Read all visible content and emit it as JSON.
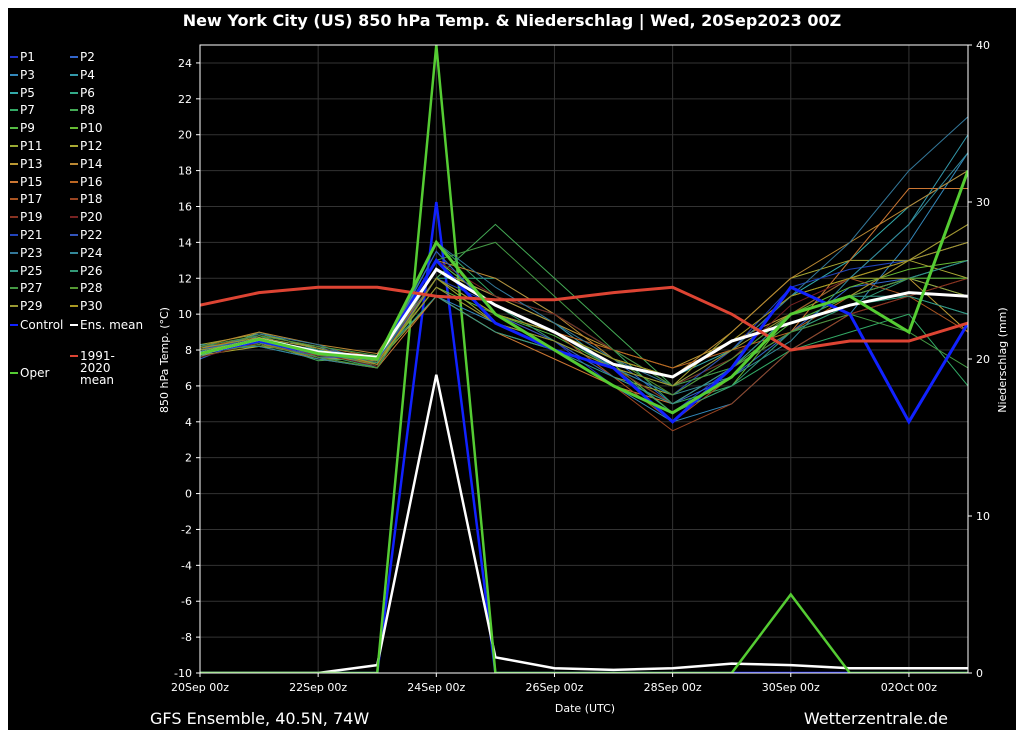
{
  "chart_data": {
    "type": "line",
    "title": "New York City  (US)  850 hPa Temp. & Niederschlag | Wed, 20Sep2023 00Z",
    "x_label": "Date (UTC)",
    "y_label": "850 hPa Temp. (°C)",
    "y2_label": "Niederschlag (mm)",
    "footer_left": "GFS Ensemble, 40.5N, 74W",
    "footer_right": "Wetterzentrale.de",
    "grid": true,
    "x": [
      0,
      1,
      2,
      3,
      4,
      5,
      6,
      7,
      8,
      9,
      10,
      11,
      12,
      13
    ],
    "xlim": [
      0,
      13
    ],
    "xticks": [
      {
        "value": 0,
        "label": "20Sep 00z"
      },
      {
        "value": 2,
        "label": "22Sep 00z"
      },
      {
        "value": 4,
        "label": "24Sep 00z"
      },
      {
        "value": 6,
        "label": "26Sep 00z"
      },
      {
        "value": 8,
        "label": "28Sep 00z"
      },
      {
        "value": 10,
        "label": "30Sep 00z"
      },
      {
        "value": 12,
        "label": "02Oct 00z"
      }
    ],
    "ylim": [
      -10,
      25
    ],
    "yticks": [
      -10,
      -8,
      -6,
      -4,
      -2,
      0,
      2,
      4,
      6,
      8,
      10,
      12,
      14,
      16,
      18,
      20,
      22,
      24
    ],
    "y2lim": [
      0,
      40
    ],
    "y2ticks": [
      0,
      10,
      20,
      30,
      40
    ],
    "series": [
      {
        "name": "P1",
        "color": "#2233cc",
        "values": [
          8,
          8.5,
          8,
          7,
          12,
          10,
          8.5,
          6,
          4.5,
          7,
          10,
          11,
          12,
          13
        ]
      },
      {
        "name": "P2",
        "color": "#3366cc",
        "values": [
          7.5,
          8.8,
          7.8,
          7.2,
          13,
          10.5,
          9,
          7.5,
          5,
          6.5,
          9,
          11.5,
          12,
          11
        ]
      },
      {
        "name": "P3",
        "color": "#3388bb",
        "values": [
          8,
          8.2,
          7.5,
          7.5,
          11,
          9.5,
          8,
          6,
          4,
          5,
          8,
          10,
          14,
          19
        ]
      },
      {
        "name": "P4",
        "color": "#3399aa",
        "values": [
          7.8,
          8.6,
          8.2,
          7,
          12.5,
          11,
          9.5,
          7,
          5.5,
          7.5,
          10,
          12,
          15,
          20
        ]
      },
      {
        "name": "P5",
        "color": "#33aaaa",
        "values": [
          8.2,
          8.4,
          7.6,
          7.4,
          13.5,
          10,
          9,
          7.5,
          6.5,
          8,
          11,
          13,
          16,
          18
        ]
      },
      {
        "name": "P6",
        "color": "#33aa88",
        "values": [
          7.6,
          9,
          8,
          7.2,
          12,
          12,
          10,
          8,
          6,
          7,
          9,
          10.5,
          11,
          10
        ]
      },
      {
        "name": "P7",
        "color": "#33aa66",
        "values": [
          8,
          8.8,
          7.8,
          7,
          14,
          11,
          10,
          8,
          5,
          6,
          8,
          9,
          10,
          6
        ]
      },
      {
        "name": "P8",
        "color": "#44aa55",
        "values": [
          8.1,
          8.5,
          7.4,
          7.6,
          12,
          15,
          12,
          9,
          6,
          7.5,
          10,
          12,
          13,
          14
        ]
      },
      {
        "name": "P9",
        "color": "#55bb44",
        "values": [
          7.9,
          8.3,
          7.7,
          7.3,
          11.5,
          10,
          8.8,
          7,
          5,
          7,
          9.5,
          11,
          12,
          12
        ]
      },
      {
        "name": "P10",
        "color": "#66bb33",
        "values": [
          8,
          8.6,
          8,
          7.1,
          13,
          10.5,
          9,
          7.2,
          4.5,
          6,
          10,
          11.5,
          12.5,
          13
        ]
      },
      {
        "name": "P11",
        "color": "#99aa33",
        "values": [
          8.3,
          8.9,
          8.1,
          7.5,
          12,
          9.5,
          8.5,
          6.5,
          5.5,
          8,
          11,
          12,
          12,
          11
        ]
      },
      {
        "name": "P12",
        "color": "#aaaa33",
        "values": [
          7.7,
          8.2,
          7.9,
          7.3,
          11,
          9,
          8,
          7,
          6,
          9,
          12,
          13,
          13,
          12
        ]
      },
      {
        "name": "P13",
        "color": "#bb9933",
        "values": [
          8,
          8.7,
          7.6,
          7.4,
          12.5,
          11,
          9.5,
          8,
          7,
          8.5,
          10,
          11,
          12,
          9
        ]
      },
      {
        "name": "P14",
        "color": "#bb8833",
        "values": [
          8.2,
          9,
          8.3,
          7.8,
          13,
          12,
          10,
          7.5,
          6.5,
          9,
          12,
          14,
          16,
          18
        ]
      },
      {
        "name": "P15",
        "color": "#cc7733",
        "values": [
          7.9,
          8.4,
          7.5,
          7,
          11,
          9,
          7.5,
          6,
          5,
          7,
          9,
          13,
          17,
          17
        ]
      },
      {
        "name": "P16",
        "color": "#bb6622",
        "values": [
          8.1,
          8.8,
          8.2,
          7.6,
          12,
          10,
          9,
          8,
          7,
          8,
          9,
          11,
          13,
          15
        ]
      },
      {
        "name": "P17",
        "color": "#aa5522",
        "values": [
          7.8,
          8.5,
          7.9,
          7.2,
          12.5,
          10.5,
          9,
          6.5,
          4,
          6.5,
          10,
          12,
          11,
          9
        ]
      },
      {
        "name": "P18",
        "color": "#994422",
        "values": [
          8,
          8.3,
          7.7,
          7.5,
          11.5,
          9.5,
          8,
          6,
          3.5,
          5,
          8,
          10,
          11,
          12
        ]
      },
      {
        "name": "P19",
        "color": "#883322",
        "values": [
          8.2,
          8.6,
          8,
          7.3,
          12,
          10,
          8.5,
          7,
          5,
          7,
          9,
          10,
          11,
          12
        ]
      },
      {
        "name": "P20",
        "color": "#772222",
        "values": [
          7.6,
          8.4,
          7.8,
          7.1,
          13,
          11,
          10,
          8,
          6,
          7.5,
          10.5,
          12,
          13,
          14
        ]
      },
      {
        "name": "P21",
        "color": "#2244bb",
        "values": [
          8,
          8.7,
          8.1,
          7.4,
          12,
          10.5,
          9,
          7,
          5.5,
          8,
          11.5,
          12.5,
          13,
          14
        ]
      },
      {
        "name": "P22",
        "color": "#3355bb",
        "values": [
          8.1,
          8.5,
          7.6,
          7.6,
          13.5,
          10,
          8.5,
          6.5,
          5,
          7,
          10,
          11,
          12,
          13
        ]
      },
      {
        "name": "P23",
        "color": "#337799",
        "values": [
          7.9,
          8.9,
          8.3,
          7.2,
          14,
          11.5,
          9.5,
          7.5,
          6,
          8,
          11,
          14,
          18,
          21
        ]
      },
      {
        "name": "P24",
        "color": "#338899",
        "values": [
          8.3,
          8.2,
          7.5,
          7,
          12,
          10,
          9,
          7,
          5.5,
          6.5,
          8.5,
          12,
          15,
          19
        ]
      },
      {
        "name": "P25",
        "color": "#339988",
        "values": [
          7.7,
          8.6,
          8,
          7.5,
          11,
          9,
          8,
          6.5,
          5,
          7,
          10,
          11,
          11,
          10
        ]
      },
      {
        "name": "P26",
        "color": "#339977",
        "values": [
          8,
          8.4,
          7.8,
          7.3,
          12.5,
          10.5,
          8.5,
          7,
          4.5,
          6,
          9,
          10.5,
          12,
          13
        ]
      },
      {
        "name": "P27",
        "color": "#449944",
        "values": [
          8.2,
          8.8,
          8.2,
          7.7,
          13,
          14,
          11,
          8,
          6,
          7,
          9,
          10,
          9,
          7
        ]
      },
      {
        "name": "P28",
        "color": "#559933",
        "values": [
          7.8,
          8.3,
          7.6,
          7,
          12,
          10,
          9,
          7.5,
          5.5,
          7.5,
          10,
          11,
          12,
          12
        ]
      },
      {
        "name": "P29",
        "color": "#999933",
        "values": [
          8,
          8.5,
          7.9,
          7.4,
          11.5,
          9.5,
          8.5,
          7,
          6,
          8,
          10,
          11,
          13,
          15
        ]
      },
      {
        "name": "P30",
        "color": "#aa9922",
        "values": [
          8.1,
          8.7,
          8.1,
          7.2,
          12,
          10,
          9,
          7.5,
          6.5,
          8.5,
          11,
          12,
          13,
          14
        ]
      },
      {
        "name": "Control",
        "color": "#1122ff",
        "values": [
          7.8,
          8.5,
          7.8,
          7.5,
          13,
          9.5,
          8,
          7,
          4,
          7,
          11.5,
          10,
          4,
          9.5
        ],
        "precip": [
          0,
          0,
          0,
          0,
          30,
          0,
          0,
          0,
          0,
          0,
          0,
          0,
          0,
          0
        ]
      },
      {
        "name": "Ens. mean",
        "color": "#ffffff",
        "values": [
          7.8,
          8.6,
          7.9,
          7.6,
          12.5,
          10.5,
          9,
          7.2,
          6.5,
          8.5,
          9.5,
          10.5,
          11.2,
          11
        ],
        "precip": [
          0,
          0,
          0,
          0.5,
          19,
          1,
          0.3,
          0.2,
          0.3,
          0.6,
          0.5,
          0.3,
          0.3,
          0.3
        ]
      },
      {
        "name": "1991-2020 mean",
        "color": "#dd4433",
        "values": [
          10.5,
          11.2,
          11.5,
          11.5,
          11,
          10.8,
          10.8,
          11.2,
          11.5,
          10,
          8,
          8.5,
          8.5,
          9.5
        ]
      },
      {
        "name": "Oper",
        "color": "#55cc33",
        "values": [
          7.8,
          8.6,
          7.8,
          7.5,
          14,
          10,
          8,
          6,
          4.5,
          6.5,
          10,
          11,
          9,
          18
        ],
        "precip": [
          0,
          0,
          0,
          0,
          40,
          0,
          0,
          0,
          0,
          0,
          5,
          0,
          0,
          0
        ]
      }
    ]
  }
}
